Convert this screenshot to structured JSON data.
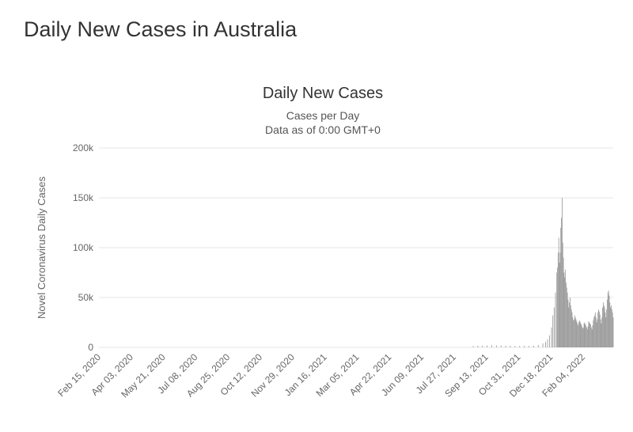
{
  "page": {
    "title": "Daily New Cases in Australia"
  },
  "chart_data": {
    "type": "bar",
    "title": "Daily New Cases",
    "subtitle_lines": [
      "Cases per Day",
      "Data as of 0:00 GMT+0"
    ],
    "ylabel": "Novel Coronavirus Daily Cases",
    "xlabel": "",
    "ylim": [
      0,
      200000
    ],
    "y_ticks": [
      {
        "value": 0,
        "label": "0"
      },
      {
        "value": 50000,
        "label": "50k"
      },
      {
        "value": 100000,
        "label": "100k"
      },
      {
        "value": 150000,
        "label": "150k"
      },
      {
        "value": 200000,
        "label": "200k"
      }
    ],
    "x_range": [
      "2020-02-15",
      "2022-03-31"
    ],
    "x_tick_labels": [
      "Feb 15, 2020",
      "Apr 03, 2020",
      "May 21, 2020",
      "Jul 08, 2020",
      "Aug 25, 2020",
      "Oct 12, 2020",
      "Nov 29, 2020",
      "Jan 16, 2021",
      "Mar 05, 2021",
      "Apr 22, 2021",
      "Jun 09, 2021",
      "Jul 27, 2021",
      "Sep 13, 2021",
      "Oct 31, 2021",
      "Dec 18, 2021",
      "Feb 04, 2022"
    ],
    "grid": true,
    "legend": "none",
    "bar_color": "#9a9a9a",
    "series": [
      {
        "values": [
          [
            "2021-09-01",
            1200
          ],
          [
            "2021-09-08",
            1600
          ],
          [
            "2021-09-15",
            1800
          ],
          [
            "2021-09-22",
            1900
          ],
          [
            "2021-09-29",
            2100
          ],
          [
            "2021-10-06",
            2000
          ],
          [
            "2021-10-13",
            1900
          ],
          [
            "2021-10-20",
            1700
          ],
          [
            "2021-10-27",
            1500
          ],
          [
            "2021-11-03",
            1400
          ],
          [
            "2021-11-10",
            1400
          ],
          [
            "2021-11-17",
            1500
          ],
          [
            "2021-11-24",
            1400
          ],
          [
            "2021-12-01",
            1600
          ],
          [
            "2021-12-08",
            2500
          ],
          [
            "2021-12-15",
            4000
          ],
          [
            "2021-12-19",
            5500
          ],
          [
            "2021-12-22",
            8000
          ],
          [
            "2021-12-25",
            12000
          ],
          [
            "2021-12-28",
            20000
          ],
          [
            "2021-12-30",
            32000
          ],
          [
            "2022-01-01",
            40000
          ],
          [
            "2022-01-03",
            55000
          ],
          [
            "2022-01-05",
            75000
          ],
          [
            "2022-01-06",
            80000
          ],
          [
            "2022-01-07",
            95000
          ],
          [
            "2022-01-08",
            110000
          ],
          [
            "2022-01-09",
            85000
          ],
          [
            "2022-01-10",
            95000
          ],
          [
            "2022-01-11",
            120000
          ],
          [
            "2022-01-12",
            130000
          ],
          [
            "2022-01-13",
            150000
          ],
          [
            "2022-01-14",
            105000
          ],
          [
            "2022-01-15",
            90000
          ],
          [
            "2022-01-16",
            75000
          ],
          [
            "2022-01-17",
            70000
          ],
          [
            "2022-01-18",
            78000
          ],
          [
            "2022-01-19",
            65000
          ],
          [
            "2022-01-20",
            60000
          ],
          [
            "2022-01-21",
            55000
          ],
          [
            "2022-01-22",
            48000
          ],
          [
            "2022-01-23",
            40000
          ],
          [
            "2022-01-24",
            45000
          ],
          [
            "2022-01-25",
            50000
          ],
          [
            "2022-01-26",
            42000
          ],
          [
            "2022-01-27",
            38000
          ],
          [
            "2022-01-28",
            35000
          ],
          [
            "2022-01-29",
            30000
          ],
          [
            "2022-01-30",
            27000
          ],
          [
            "2022-01-31",
            28000
          ],
          [
            "2022-02-01",
            32000
          ],
          [
            "2022-02-02",
            30000
          ],
          [
            "2022-02-03",
            28000
          ],
          [
            "2022-02-04",
            26000
          ],
          [
            "2022-02-05",
            24000
          ],
          [
            "2022-02-06",
            22000
          ],
          [
            "2022-02-07",
            25000
          ],
          [
            "2022-02-08",
            27000
          ],
          [
            "2022-02-09",
            26000
          ],
          [
            "2022-02-10",
            24000
          ],
          [
            "2022-02-11",
            23000
          ],
          [
            "2022-02-12",
            21000
          ],
          [
            "2022-02-13",
            19000
          ],
          [
            "2022-02-14",
            20000
          ],
          [
            "2022-02-15",
            24000
          ],
          [
            "2022-02-16",
            25000
          ],
          [
            "2022-02-17",
            23000
          ],
          [
            "2022-02-18",
            22000
          ],
          [
            "2022-02-19",
            20000
          ],
          [
            "2022-02-20",
            18000
          ],
          [
            "2022-02-21",
            21000
          ],
          [
            "2022-02-22",
            26000
          ],
          [
            "2022-02-23",
            25000
          ],
          [
            "2022-02-24",
            24000
          ],
          [
            "2022-02-25",
            23000
          ],
          [
            "2022-02-26",
            20000
          ],
          [
            "2022-02-27",
            18000
          ],
          [
            "2022-02-28",
            22000
          ],
          [
            "2022-03-01",
            27000
          ],
          [
            "2022-03-02",
            30000
          ],
          [
            "2022-03-03",
            32000
          ],
          [
            "2022-03-04",
            35000
          ],
          [
            "2022-03-05",
            30000
          ],
          [
            "2022-03-06",
            25000
          ],
          [
            "2022-03-07",
            28000
          ],
          [
            "2022-03-08",
            35000
          ],
          [
            "2022-03-09",
            38000
          ],
          [
            "2022-03-10",
            36000
          ],
          [
            "2022-03-11",
            33000
          ],
          [
            "2022-03-12",
            28000
          ],
          [
            "2022-03-13",
            24000
          ],
          [
            "2022-03-14",
            30000
          ],
          [
            "2022-03-15",
            40000
          ],
          [
            "2022-03-16",
            45000
          ],
          [
            "2022-03-17",
            42000
          ],
          [
            "2022-03-18",
            40000
          ],
          [
            "2022-03-19",
            35000
          ],
          [
            "2022-03-20",
            30000
          ],
          [
            "2022-03-21",
            38000
          ],
          [
            "2022-03-22",
            48000
          ],
          [
            "2022-03-23",
            55000
          ],
          [
            "2022-03-24",
            57000
          ],
          [
            "2022-03-25",
            52000
          ],
          [
            "2022-03-26",
            45000
          ],
          [
            "2022-03-27",
            40000
          ],
          [
            "2022-03-28",
            42000
          ],
          [
            "2022-03-29",
            38000
          ],
          [
            "2022-03-30",
            35000
          ],
          [
            "2022-03-31",
            30000
          ]
        ]
      }
    ]
  }
}
